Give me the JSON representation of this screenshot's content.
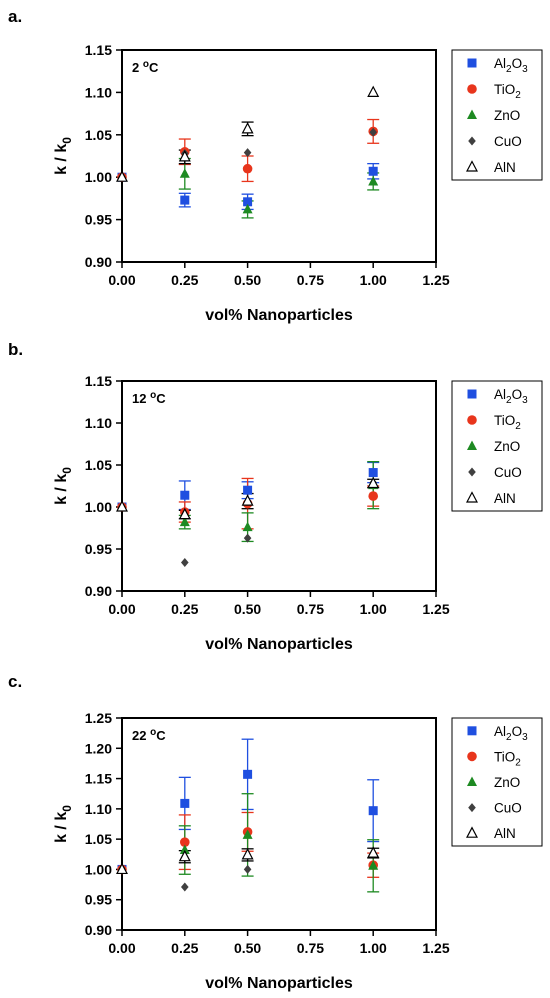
{
  "chart_data": [
    {
      "type": "scatter",
      "panel": "a.",
      "condition": {
        "text": "2 ",
        "sup": "o",
        "unit": "C"
      },
      "xlabel": "vol% Nanoparticles",
      "ylabel": {
        "main": "k / k",
        "sub": "0"
      },
      "xlim": [
        0,
        1.25
      ],
      "ylim": [
        0.9,
        1.15
      ],
      "xticks": [
        "0.00",
        "0.25",
        "0.50",
        "0.75",
        "1.00",
        "1.25"
      ],
      "yticks": [
        "0.90",
        "0.95",
        "1.00",
        "1.05",
        "1.10",
        "1.15"
      ],
      "grid": false,
      "legend": "right",
      "series": [
        {
          "name": "Al2O3",
          "label": {
            "a": "Al",
            "s1": "2",
            "b": "O",
            "s2": "3"
          },
          "marker": "square",
          "color": "#1f4fe0",
          "points": [
            {
              "x": 0,
              "y": 1.0,
              "err": 0
            },
            {
              "x": 0.25,
              "y": 0.973,
              "err": 0.008
            },
            {
              "x": 0.5,
              "y": 0.971,
              "err": 0.009
            },
            {
              "x": 1.0,
              "y": 1.007,
              "err": 0.009
            }
          ]
        },
        {
          "name": "TiO2",
          "label": {
            "a": "Ti",
            "b": "O",
            "s1": "2"
          },
          "marker": "circle",
          "color": "#e8351c",
          "points": [
            {
              "x": 0,
              "y": 1.0,
              "err": 0
            },
            {
              "x": 0.25,
              "y": 1.03,
              "err": 0.015
            },
            {
              "x": 0.5,
              "y": 1.01,
              "err": 0.015
            },
            {
              "x": 1.0,
              "y": 1.054,
              "err": 0.014
            }
          ]
        },
        {
          "name": "ZnO",
          "label": {
            "a": "ZnO"
          },
          "marker": "triangle",
          "color": "#1e8a22",
          "points": [
            {
              "x": 0,
              "y": 1.0,
              "err": 0
            },
            {
              "x": 0.25,
              "y": 1.004,
              "err": 0.018
            },
            {
              "x": 0.5,
              "y": 0.962,
              "err": 0.01
            },
            {
              "x": 1.0,
              "y": 0.995,
              "err": 0.01
            }
          ]
        },
        {
          "name": "CuO",
          "label": {
            "a": "CuO"
          },
          "marker": "diamond",
          "color": "#404040",
          "points": [
            {
              "x": 0,
              "y": 1.0,
              "err": 0
            },
            {
              "x": 0.25,
              "y": 1.028,
              "err": 0
            },
            {
              "x": 0.5,
              "y": 1.029,
              "err": 0
            },
            {
              "x": 1.0,
              "y": 1.053,
              "err": 0
            }
          ]
        },
        {
          "name": "AlN",
          "label": {
            "a": "AlN"
          },
          "marker": "open-triangle",
          "color": "#000000",
          "points": [
            {
              "x": 0,
              "y": 1.0,
              "err": 0
            },
            {
              "x": 0.25,
              "y": 1.024,
              "err": 0.008
            },
            {
              "x": 0.5,
              "y": 1.057,
              "err": 0.008
            },
            {
              "x": 1.0,
              "y": 1.1,
              "err": 0
            }
          ]
        }
      ]
    },
    {
      "type": "scatter",
      "panel": "b.",
      "condition": {
        "text": "12 ",
        "sup": "o",
        "unit": "C"
      },
      "xlabel": "vol% Nanoparticles",
      "ylabel": {
        "main": "k / k",
        "sub": "0"
      },
      "xlim": [
        0,
        1.25
      ],
      "ylim": [
        0.9,
        1.15
      ],
      "xticks": [
        "0.00",
        "0.25",
        "0.50",
        "0.75",
        "1.00",
        "1.25"
      ],
      "yticks": [
        "0.90",
        "0.95",
        "1.00",
        "1.05",
        "1.10",
        "1.15"
      ],
      "grid": false,
      "legend": "right",
      "series": [
        {
          "name": "Al2O3",
          "label": {
            "a": "Al",
            "s1": "2",
            "b": "O",
            "s2": "3"
          },
          "marker": "square",
          "color": "#1f4fe0",
          "points": [
            {
              "x": 0,
              "y": 1.0,
              "err": 0
            },
            {
              "x": 0.25,
              "y": 1.014,
              "err": 0.017
            },
            {
              "x": 0.5,
              "y": 1.02,
              "err": 0.01
            },
            {
              "x": 1.0,
              "y": 1.041,
              "err": 0.012
            }
          ]
        },
        {
          "name": "TiO2",
          "label": {
            "a": "Ti",
            "b": "O",
            "s1": "2"
          },
          "marker": "circle",
          "color": "#e8351c",
          "points": [
            {
              "x": 0,
              "y": 1.0,
              "err": 0
            },
            {
              "x": 0.25,
              "y": 0.994,
              "err": 0.012
            },
            {
              "x": 0.5,
              "y": 1.004,
              "err": 0.03
            },
            {
              "x": 1.0,
              "y": 1.013,
              "err": 0.012
            }
          ]
        },
        {
          "name": "ZnO",
          "label": {
            "a": "ZnO"
          },
          "marker": "triangle",
          "color": "#1e8a22",
          "points": [
            {
              "x": 0,
              "y": 1.0,
              "err": 0
            },
            {
              "x": 0.25,
              "y": 0.982,
              "err": 0.008
            },
            {
              "x": 0.5,
              "y": 0.976,
              "err": 0.017
            },
            {
              "x": 1.0,
              "y": 1.026,
              "err": 0.028
            }
          ]
        },
        {
          "name": "CuO",
          "label": {
            "a": "CuO"
          },
          "marker": "diamond",
          "color": "#404040",
          "points": [
            {
              "x": 0,
              "y": 1.0,
              "err": 0
            },
            {
              "x": 0.25,
              "y": 0.934,
              "err": 0
            },
            {
              "x": 0.5,
              "y": 0.963,
              "err": 0
            },
            {
              "x": 1.0,
              "y": 1.029,
              "err": 0
            }
          ]
        },
        {
          "name": "AlN",
          "label": {
            "a": "AlN"
          },
          "marker": "open-triangle",
          "color": "#000000",
          "points": [
            {
              "x": 0,
              "y": 1.0,
              "err": 0
            },
            {
              "x": 0.25,
              "y": 0.991,
              "err": 0.005
            },
            {
              "x": 0.5,
              "y": 1.007,
              "err": 0.009
            },
            {
              "x": 1.0,
              "y": 1.028,
              "err": 0.005
            }
          ]
        }
      ]
    },
    {
      "type": "scatter",
      "panel": "c.",
      "condition": {
        "text": "22 ",
        "sup": "o",
        "unit": "C"
      },
      "xlabel": "vol% Nanoparticles",
      "ylabel": {
        "main": "k / k",
        "sub": "0"
      },
      "xlim": [
        0,
        1.25
      ],
      "ylim": [
        0.9,
        1.25
      ],
      "xticks": [
        "0.00",
        "0.25",
        "0.50",
        "0.75",
        "1.00",
        "1.25"
      ],
      "yticks": [
        "0.90",
        "0.95",
        "1.00",
        "1.05",
        "1.10",
        "1.15",
        "1.20",
        "1.25"
      ],
      "grid": false,
      "legend": "right",
      "series": [
        {
          "name": "Al2O3",
          "label": {
            "a": "Al",
            "s1": "2",
            "b": "O",
            "s2": "3"
          },
          "marker": "square",
          "color": "#1f4fe0",
          "points": [
            {
              "x": 0,
              "y": 1.0,
              "err": 0
            },
            {
              "x": 0.25,
              "y": 1.109,
              "err": 0.043
            },
            {
              "x": 0.5,
              "y": 1.157,
              "err": 0.058
            },
            {
              "x": 1.0,
              "y": 1.097,
              "err": 0.051
            }
          ]
        },
        {
          "name": "TiO2",
          "label": {
            "a": "Ti",
            "b": "O",
            "s1": "2"
          },
          "marker": "circle",
          "color": "#e8351c",
          "points": [
            {
              "x": 0,
              "y": 1.0,
              "err": 0
            },
            {
              "x": 0.25,
              "y": 1.045,
              "err": 0.045
            },
            {
              "x": 0.5,
              "y": 1.062,
              "err": 0.032
            },
            {
              "x": 1.0,
              "y": 1.007,
              "err": 0.02
            }
          ]
        },
        {
          "name": "ZnO",
          "label": {
            "a": "ZnO"
          },
          "marker": "triangle",
          "color": "#1e8a22",
          "points": [
            {
              "x": 0,
              "y": 1.0,
              "err": 0
            },
            {
              "x": 0.25,
              "y": 1.032,
              "err": 0.04
            },
            {
              "x": 0.5,
              "y": 1.057,
              "err": 0.068
            },
            {
              "x": 1.0,
              "y": 1.006,
              "err": 0.043
            }
          ]
        },
        {
          "name": "CuO",
          "label": {
            "a": "CuO"
          },
          "marker": "diamond",
          "color": "#404040",
          "points": [
            {
              "x": 0,
              "y": 1.0,
              "err": 0
            },
            {
              "x": 0.25,
              "y": 0.971,
              "err": 0
            },
            {
              "x": 0.5,
              "y": 1.0,
              "err": 0
            },
            {
              "x": 1.0,
              "y": 1.026,
              "err": 0
            }
          ]
        },
        {
          "name": "AlN",
          "label": {
            "a": "AlN"
          },
          "marker": "open-triangle",
          "color": "#000000",
          "points": [
            {
              "x": 0,
              "y": 1.0,
              "err": 0
            },
            {
              "x": 0.25,
              "y": 1.021,
              "err": 0.01
            },
            {
              "x": 0.5,
              "y": 1.024,
              "err": 0.01
            },
            {
              "x": 1.0,
              "y": 1.027,
              "err": 0.008
            }
          ]
        }
      ]
    }
  ]
}
